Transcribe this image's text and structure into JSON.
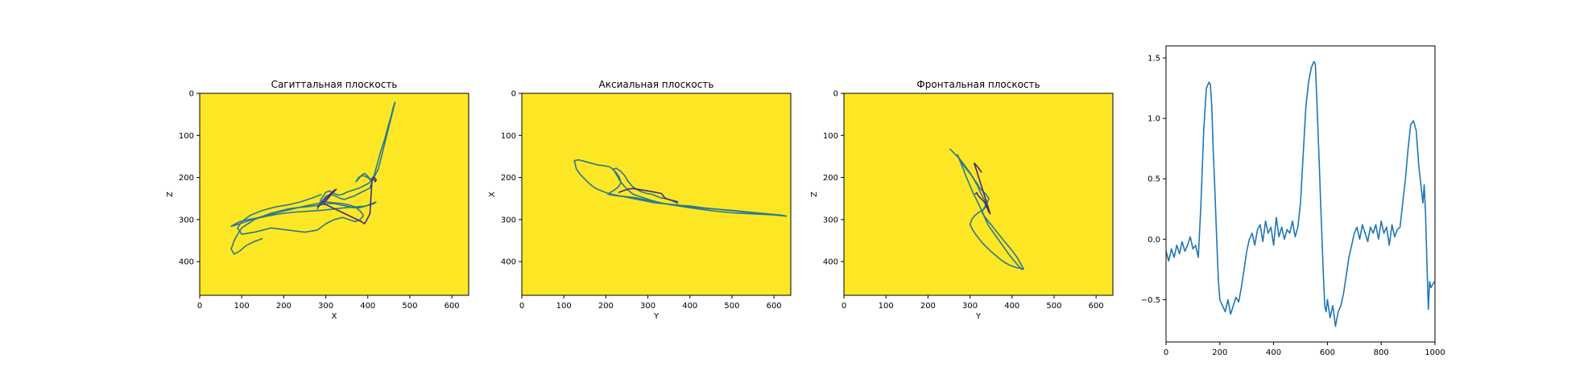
{
  "chart_data": [
    {
      "type": "line",
      "title": "Сагиттальная плоскость",
      "xlabel": "X",
      "ylabel": "Z",
      "xlim": [
        0,
        640
      ],
      "ylim": [
        480,
        0
      ],
      "xticks": [
        0,
        100,
        200,
        300,
        400,
        500,
        600
      ],
      "yticks": [
        0,
        100,
        200,
        300,
        400
      ],
      "background": "#fde725",
      "grid": false,
      "series": [
        {
          "color": "#2a788e",
          "x": [
            465,
            455,
            445,
            435,
            425,
            412,
            400,
            390,
            380,
            365,
            350,
            340,
            330,
            320,
            310,
            300,
            290,
            280,
            288,
            300,
            312,
            325,
            335,
            345,
            355,
            365,
            375,
            385,
            395,
            405,
            410,
            400,
            388,
            378,
            372,
            385,
            392,
            398,
            402,
            408,
            415,
            422,
            430,
            440,
            448,
            455,
            460,
            465
          ],
          "y": [
            20,
            60,
            100,
            140,
            180,
            205,
            215,
            220,
            225,
            230,
            235,
            240,
            242,
            238,
            232,
            235,
            250,
            275,
            260,
            245,
            240,
            245,
            250,
            252,
            248,
            245,
            240,
            235,
            230,
            225,
            210,
            200,
            195,
            200,
            210,
            195,
            190,
            195,
            200,
            205,
            195,
            170,
            140,
            110,
            80,
            55,
            35,
            20
          ]
        },
        {
          "color": "#2a788e",
          "x": [
            290,
            270,
            240,
            210,
            180,
            150,
            120,
            100,
            90,
            100,
            130,
            170,
            210,
            250,
            280,
            300,
            320,
            340,
            355,
            370,
            382,
            390
          ],
          "y": [
            240,
            248,
            258,
            265,
            270,
            278,
            290,
            305,
            320,
            335,
            330,
            320,
            325,
            330,
            325,
            310,
            300,
            295,
            300,
            305,
            300,
            290
          ]
        },
        {
          "color": "#2a788e",
          "x": [
            390,
            382,
            370,
            355,
            340,
            320,
            300,
            280,
            250,
            220,
            190,
            160,
            130,
            110,
            95,
            82,
            75,
            82,
            95,
            115,
            140,
            170,
            200,
            230,
            260,
            290,
            318,
            345,
            370,
            395,
            415,
            420
          ],
          "y": [
            290,
            280,
            270,
            265,
            262,
            260,
            258,
            262,
            268,
            275,
            282,
            290,
            298,
            305,
            310,
            314,
            316,
            312,
            305,
            300,
            296,
            290,
            285,
            282,
            280,
            278,
            275,
            272,
            270,
            268,
            262,
            258
          ]
        },
        {
          "color": "#2a788e",
          "x": [
            420,
            410,
            395,
            380,
            365,
            350,
            335,
            320,
            305,
            290,
            270,
            250,
            230,
            210,
            190,
            170,
            150,
            130,
            115,
            100,
            90,
            82,
            75,
            82,
            95,
            110,
            130,
            150
          ],
          "y": [
            258,
            262,
            268,
            272,
            272,
            268,
            265,
            262,
            262,
            265,
            268,
            270,
            272,
            275,
            280,
            285,
            292,
            300,
            310,
            320,
            335,
            350,
            370,
            382,
            375,
            362,
            352,
            345
          ]
        },
        {
          "color": "#482878",
          "x": [
            280,
            290,
            300,
            310,
            318,
            325,
            315,
            305,
            295,
            385,
            392,
            398,
            402,
            405,
            410,
            415,
            420,
            418,
            412
          ],
          "y": [
            270,
            262,
            250,
            240,
            232,
            228,
            238,
            250,
            262,
            305,
            310,
            300,
            292,
            286,
            205,
            200,
            205,
            210,
            202
          ]
        }
      ]
    },
    {
      "type": "line",
      "title": "Аксиальная плоскость",
      "xlabel": "Y",
      "ylabel": "X",
      "xlim": [
        0,
        640
      ],
      "ylim": [
        480,
        0
      ],
      "xticks": [
        0,
        100,
        200,
        300,
        400,
        500,
        600
      ],
      "yticks": [
        0,
        100,
        200,
        300,
        400
      ],
      "background": "#fde725",
      "grid": false,
      "series": [
        {
          "color": "#2a788e",
          "x": [
            620,
            580,
            540,
            500,
            460,
            420,
            380,
            350,
            330,
            310,
            295,
            280,
            265,
            255,
            245,
            235,
            228,
            222,
            218,
            225,
            235,
            245
          ],
          "y": [
            290,
            286,
            282,
            278,
            275,
            272,
            268,
            264,
            260,
            255,
            250,
            245,
            240,
            232,
            222,
            210,
            198,
            188,
            180,
            178,
            185,
            196
          ]
        },
        {
          "color": "#2a788e",
          "x": [
            245,
            252,
            262,
            272,
            285,
            298,
            310,
            320,
            330,
            340,
            350,
            360,
            372
          ],
          "y": [
            196,
            208,
            220,
            228,
            234,
            238,
            240,
            244,
            248,
            250,
            252,
            256,
            262
          ]
        },
        {
          "color": "#2a788e",
          "x": [
            630,
            590,
            550,
            510,
            470,
            430,
            400,
            375,
            355,
            335,
            315,
            295,
            275,
            255,
            235,
            215,
            200,
            190,
            180,
            170,
            160,
            150,
            140,
            130,
            125,
            135,
            150,
            165,
            180,
            195,
            210
          ],
          "y": [
            292,
            288,
            284,
            280,
            276,
            272,
            268,
            266,
            264,
            262,
            260,
            256,
            252,
            248,
            244,
            240,
            236,
            232,
            228,
            222,
            214,
            204,
            194,
            180,
            160,
            158,
            162,
            166,
            170,
            172,
            175
          ]
        },
        {
          "color": "#2a788e",
          "x": [
            210,
            218,
            226,
            232,
            236,
            230,
            220,
            210,
            205,
            215,
            230,
            250,
            270,
            290,
            310,
            330,
            350,
            375,
            400,
            430,
            460,
            500,
            540,
            580,
            620,
            630
          ],
          "y": [
            175,
            182,
            190,
            200,
            212,
            222,
            230,
            236,
            240,
            242,
            244,
            246,
            248,
            252,
            256,
            260,
            264,
            268,
            272,
            276,
            280,
            284,
            286,
            288,
            290,
            292
          ]
        },
        {
          "color": "#482878",
          "x": [
            230,
            240,
            252,
            264,
            276,
            288,
            300,
            312,
            322,
            332,
            340,
            348,
            356,
            364,
            372
          ],
          "y": [
            236,
            232,
            228,
            226,
            228,
            230,
            232,
            234,
            236,
            238,
            248,
            252,
            254,
            256,
            258
          ]
        }
      ]
    },
    {
      "type": "line",
      "title": "Фронтальная плоскость",
      "xlabel": "Y",
      "ylabel": "Z",
      "xlim": [
        0,
        640
      ],
      "ylim": [
        480,
        0
      ],
      "xticks": [
        0,
        100,
        200,
        300,
        400,
        500,
        600
      ],
      "yticks": [
        0,
        100,
        200,
        300,
        400
      ],
      "background": "#fde725",
      "grid": false,
      "series": [
        {
          "color": "#2a788e",
          "x": [
            425,
            415,
            405,
            395,
            385,
            375,
            365,
            355,
            345,
            338,
            332,
            326,
            320,
            314,
            308,
            302,
            296,
            290,
            285,
            280,
            276,
            272,
            270,
            272,
            276,
            282,
            290,
            298,
            306,
            312,
            318,
            322
          ],
          "y": [
            420,
            410,
            398,
            386,
            372,
            358,
            344,
            330,
            316,
            302,
            288,
            274,
            262,
            250,
            238,
            224,
            210,
            196,
            182,
            170,
            160,
            152,
            146,
            150,
            158,
            168,
            178,
            188,
            198,
            208,
            216,
            224
          ]
        },
        {
          "color": "#2a788e",
          "x": [
            322,
            330,
            338,
            345,
            340,
            334,
            328,
            334,
            342,
            350,
            358,
            366,
            374,
            382,
            392,
            402,
            412,
            420,
            428
          ],
          "y": [
            224,
            232,
            240,
            250,
            262,
            272,
            282,
            292,
            302,
            312,
            322,
            332,
            342,
            352,
            364,
            376,
            390,
            404,
            418
          ]
        },
        {
          "color": "#2a788e",
          "x": [
            252,
            262,
            272,
            282,
            292,
            302,
            310,
            318,
            324,
            330,
            336,
            340,
            332,
            322,
            312,
            304,
            300,
            306,
            314,
            322,
            330,
            340,
            350,
            362,
            374,
            386,
            398,
            410,
            420,
            428
          ],
          "y": [
            132,
            142,
            152,
            164,
            178,
            192,
            206,
            220,
            234,
            246,
            256,
            268,
            276,
            282,
            290,
            300,
            312,
            324,
            336,
            346,
            356,
            366,
            376,
            386,
            396,
            404,
            410,
            414,
            416,
            418
          ]
        },
        {
          "color": "#482878",
          "x": [
            312,
            316,
            320,
            324,
            328,
            332,
            336,
            340,
            344,
            348,
            310,
            316,
            322,
            328
          ],
          "y": [
            240,
            236,
            244,
            248,
            252,
            256,
            262,
            270,
            280,
            286,
            166,
            172,
            180,
            188
          ]
        }
      ]
    },
    {
      "type": "line",
      "title": "",
      "xlabel": "",
      "ylabel": "",
      "xlim": [
        0,
        1000
      ],
      "ylim": [
        -0.85,
        1.6
      ],
      "xticks": [
        0,
        200,
        400,
        600,
        800,
        1000
      ],
      "yticks": [
        -0.5,
        0.0,
        0.5,
        1.0,
        1.5
      ],
      "background": "#ffffff",
      "grid": false,
      "series": [
        {
          "color": "#1f77b4",
          "x": [
            0,
            10,
            20,
            30,
            40,
            50,
            60,
            70,
            80,
            90,
            100,
            110,
            120,
            130,
            140,
            150,
            160,
            165,
            170,
            175,
            180,
            185,
            190,
            195,
            200,
            210,
            220,
            230,
            240,
            250,
            260,
            270,
            280,
            290,
            300,
            310,
            320,
            330,
            340,
            350,
            360,
            370,
            380,
            390,
            400,
            410,
            420,
            430,
            440,
            450,
            460,
            470,
            480,
            490,
            500,
            510,
            520,
            530,
            540,
            550,
            555,
            560,
            565,
            570,
            575,
            580,
            585,
            590,
            595,
            600,
            610,
            620,
            630,
            640,
            650,
            660,
            670,
            680,
            690,
            700,
            710,
            720,
            730,
            740,
            750,
            760,
            770,
            780,
            790,
            800,
            810,
            820,
            830,
            840,
            850,
            860,
            870,
            880,
            890,
            900,
            910,
            920,
            930,
            940,
            950,
            955,
            960,
            965,
            970,
            975,
            980,
            985,
            990,
            995,
            1000
          ],
          "y": [
            -0.1,
            -0.18,
            -0.08,
            -0.15,
            -0.05,
            -0.12,
            -0.02,
            -0.1,
            -0.05,
            0.02,
            -0.08,
            -0.05,
            -0.15,
            0.3,
            0.9,
            1.25,
            1.3,
            1.28,
            1.1,
            0.75,
            0.5,
            0.2,
            -0.1,
            -0.35,
            -0.5,
            -0.55,
            -0.6,
            -0.5,
            -0.62,
            -0.55,
            -0.48,
            -0.52,
            -0.4,
            -0.25,
            -0.1,
            0.0,
            0.05,
            -0.05,
            0.08,
            0.12,
            -0.02,
            0.15,
            0.05,
            0.1,
            -0.05,
            0.18,
            0.02,
            0.1,
            0.0,
            0.08,
            0.05,
            0.15,
            0.02,
            0.1,
            0.3,
            0.7,
            1.1,
            1.3,
            1.42,
            1.47,
            1.45,
            1.2,
            0.9,
            0.6,
            0.3,
            0.0,
            -0.3,
            -0.55,
            -0.6,
            -0.5,
            -0.65,
            -0.55,
            -0.72,
            -0.6,
            -0.55,
            -0.45,
            -0.3,
            -0.15,
            -0.05,
            0.05,
            0.1,
            0.0,
            0.12,
            0.05,
            -0.02,
            0.1,
            0.05,
            0.12,
            0.0,
            0.15,
            0.05,
            0.1,
            -0.05,
            0.12,
            0.02,
            0.08,
            0.1,
            0.3,
            0.5,
            0.75,
            0.95,
            0.98,
            0.9,
            0.6,
            0.4,
            0.3,
            0.45,
            0.2,
            -0.2,
            -0.58,
            -0.35,
            -0.4,
            -0.38,
            -0.36,
            -0.35
          ]
        }
      ]
    }
  ]
}
